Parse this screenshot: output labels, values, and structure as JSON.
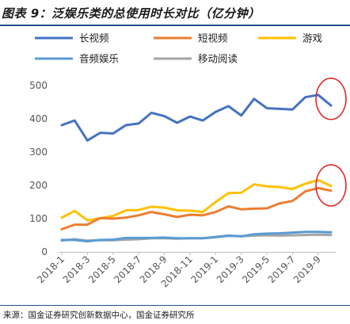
{
  "title": "图表 9：泛娱乐类的总使用时长对比（亿分钟）",
  "source": "来源：国金证券研究创新数据中心，国金证券研究所",
  "chart_data": {
    "type": "line",
    "title": "",
    "xlabel": "",
    "ylabel": "",
    "ylim": [
      0,
      500
    ],
    "yticks": [
      0,
      100,
      200,
      300,
      400,
      500
    ],
    "grid": false,
    "legend_position": "top",
    "x": [
      "2018-1",
      "2018-2",
      "2018-3",
      "2018-4",
      "2018-5",
      "2018-6",
      "2018-7",
      "2018-8",
      "2018-9",
      "2018-10",
      "2018-11",
      "2018-12",
      "2019-1",
      "2019-2",
      "2019-3",
      "2019-4",
      "2019-5",
      "2019-6",
      "2019-7",
      "2019-8",
      "2019-9",
      "2019-10"
    ],
    "xtick_labels": [
      "2018-1",
      "2018-3",
      "2018-5",
      "2018-7",
      "2018-9",
      "2018-11",
      "2019-1",
      "2019-3",
      "2019-5",
      "2019-7",
      "2019-9"
    ],
    "series": [
      {
        "name": "长视频",
        "color": "#4472c4",
        "values": [
          381,
          395,
          335,
          358,
          356,
          381,
          386,
          418,
          408,
          388,
          407,
          395,
          421,
          438,
          410,
          460,
          432,
          430,
          428,
          465,
          472,
          440
        ]
      },
      {
        "name": "短视频",
        "color": "#ed7d31",
        "values": [
          68,
          82,
          82,
          102,
          100,
          103,
          110,
          120,
          113,
          105,
          112,
          110,
          120,
          137,
          128,
          130,
          131,
          146,
          153,
          182,
          192,
          184
        ]
      },
      {
        "name": "游戏",
        "color": "#ffc000",
        "values": [
          103,
          123,
          95,
          101,
          108,
          125,
          126,
          136,
          133,
          125,
          124,
          120,
          150,
          177,
          178,
          203,
          197,
          195,
          189,
          205,
          216,
          198
        ]
      },
      {
        "name": "音频娱乐",
        "color": "#5b9bd5",
        "values": [
          36,
          36,
          32,
          36,
          37,
          42,
          42,
          42,
          43,
          41,
          41,
          41,
          45,
          49,
          47,
          53,
          55,
          56,
          58,
          60,
          60,
          59
        ]
      },
      {
        "name": "移动阅读",
        "color": "#a5a5a5",
        "values": [
          34,
          38,
          34,
          35,
          35,
          37,
          38,
          41,
          41,
          40,
          41,
          41,
          44,
          48,
          47,
          49,
          50,
          49,
          50,
          51,
          52,
          51
        ]
      }
    ],
    "highlight_circles": [
      {
        "series": "长视频",
        "center_x": "2019-10",
        "center_y": 460,
        "color": "#e11b1b"
      },
      {
        "series": "短视频",
        "center_x": "2019-10",
        "center_y": 200,
        "color": "#e11b1b"
      }
    ]
  }
}
